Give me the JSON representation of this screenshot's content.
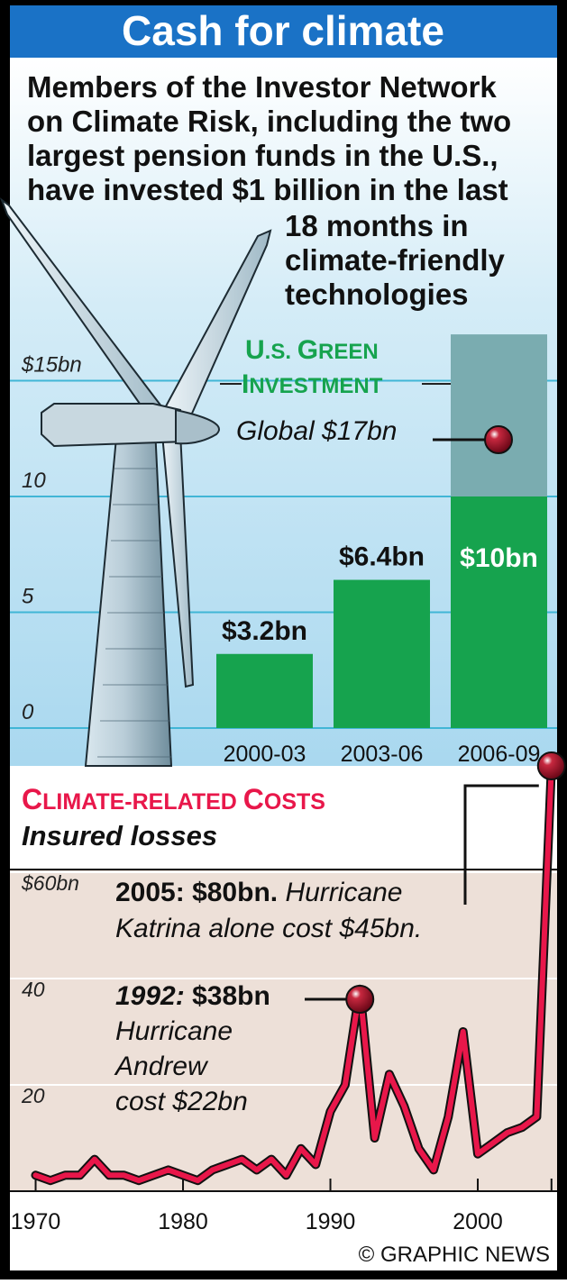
{
  "header": {
    "title": "Cash for climate",
    "intro_lines": [
      "Members of the Investor Network",
      "on Climate Risk, including the two",
      "largest pension funds in the U.S.,",
      "have invested $1 billion in the last",
      "18 months in",
      "climate-friendly",
      "technologies"
    ]
  },
  "colors": {
    "title_bar": "#1a72c6",
    "sky_top": "#ffffff",
    "sky_bottom": "#a9d8ef",
    "green": "#16a34e",
    "global_teal": "#7aacb0",
    "gridline": "#41b6d6",
    "red": "#e8174a",
    "marker": "#8b0c22",
    "lower_bg": "#ede0d8"
  },
  "chart_data": [
    {
      "type": "bar",
      "title": "U.S. Green Investment",
      "title_lines": [
        "U.S. Green",
        "Investment"
      ],
      "y_unit_label": "$15bn",
      "yticks": [
        "0",
        "5",
        "10",
        "$15bn"
      ],
      "ylim": [
        0,
        17
      ],
      "categories": [
        "2000-03",
        "2003-06",
        "2006-09"
      ],
      "values": [
        3.2,
        6.4,
        10
      ],
      "value_labels": [
        "$3.2bn",
        "$6.4bn",
        "$10bn"
      ],
      "global_value": 17,
      "global_label": "Global $17bn",
      "grid": true
    },
    {
      "type": "line",
      "title": "Climate-Related Costs",
      "subtitle": "Insured losses",
      "yticks": [
        "20",
        "40",
        "$60bn"
      ],
      "ylim": [
        0,
        90
      ],
      "xticks": [
        "1970",
        "1980",
        "1990",
        "2000"
      ],
      "x": [
        1970,
        1971,
        1972,
        1973,
        1974,
        1975,
        1976,
        1977,
        1978,
        1979,
        1980,
        1981,
        1982,
        1983,
        1984,
        1985,
        1986,
        1987,
        1988,
        1989,
        1990,
        1991,
        1992,
        1993,
        1994,
        1995,
        1996,
        1997,
        1998,
        1999,
        2000,
        2001,
        2002,
        2003,
        2004,
        2005
      ],
      "values": [
        3,
        2,
        3,
        3,
        6,
        3,
        3,
        2,
        3,
        4,
        3,
        2,
        4,
        5,
        6,
        4,
        6,
        3,
        8,
        5,
        15,
        20,
        38,
        10,
        22,
        16,
        8,
        4,
        14,
        30,
        7,
        9,
        11,
        12,
        14,
        80
      ],
      "annotations": [
        {
          "year": 2005,
          "lead": "2005: $80bn.",
          "text_lines": [
            "Hurricane",
            "Katrina alone cost $45bn."
          ]
        },
        {
          "year": 1992,
          "lead_year": "1992:",
          "lead_value": "$38bn",
          "text_lines": [
            "Hurricane",
            "Andrew",
            "cost $22bn"
          ]
        }
      ],
      "grid": true
    }
  ],
  "credit": "© GRAPHIC NEWS"
}
